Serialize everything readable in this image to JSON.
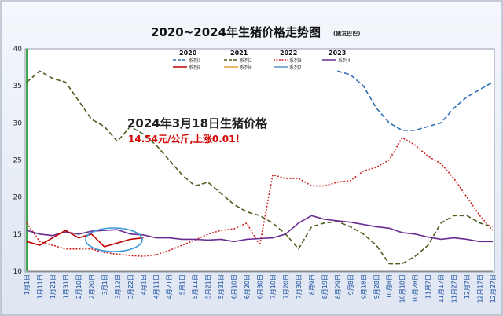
{
  "chart_data": {
    "type": "line",
    "title": "2020~2024年生猪价格走势图",
    "title_note": "(猪友巴巴)",
    "ylim": [
      10,
      40
    ],
    "yticks": [
      10,
      15,
      20,
      25,
      30,
      35,
      40
    ],
    "grid": false,
    "categories": [
      "1月1日",
      "1月11日",
      "1月21日",
      "1月31日",
      "2月10日",
      "2月20日",
      "3月1日",
      "3月12日",
      "3月22日",
      "4月1日",
      "4月11日",
      "4月21日",
      "5月1日",
      "5月11日",
      "5月21日",
      "5月31日",
      "6月10日",
      "6月20日",
      "6月30日",
      "7月10日",
      "7月20日",
      "7月30日",
      "8月9日",
      "8月19日",
      "8月29日",
      "9月8日",
      "9月18日",
      "9月28日",
      "10月8日",
      "10月18日",
      "10月28日",
      "11月7日",
      "11月17日",
      "11月27日",
      "12月7日",
      "12月17日",
      "12月27日"
    ],
    "legend": {
      "placement": "top",
      "year_headers": [
        "2020",
        "2021",
        "2022",
        "2023"
      ],
      "entries": [
        {
          "name": "系列1",
          "color": "#2e6fb5",
          "dash": "dash"
        },
        {
          "name": "系列2",
          "color": "#4a5e1e",
          "dash": "dash"
        },
        {
          "name": "系列3",
          "color": "#cc1f1f",
          "dash": "dot"
        },
        {
          "name": "系列4",
          "color": "#6a2c91",
          "dash": "solid"
        },
        {
          "name": "系列5",
          "color": "#c00000",
          "dash": "solid"
        },
        {
          "name": "系列6",
          "color": "#e8a33d",
          "dash": "solid"
        },
        {
          "name": "系列7",
          "color": "#5b8dc9",
          "dash": "solid"
        }
      ]
    },
    "series": [
      {
        "name": "系列1",
        "color": "#2e6fb5",
        "x": [
          24,
          25,
          26,
          27,
          28,
          29,
          30,
          31,
          32,
          33,
          34,
          35,
          36
        ],
        "values": [
          37,
          36.5,
          35,
          32,
          30,
          29,
          29,
          29.5,
          30,
          32,
          33.5,
          34.5,
          35.5
        ]
      },
      {
        "name": "系列2",
        "color": "#4a5e1e",
        "x": [
          0,
          1,
          2,
          3,
          4,
          5,
          6,
          7,
          8,
          9,
          10,
          11,
          12,
          13,
          14,
          15,
          16,
          17,
          18,
          19,
          20,
          21,
          22,
          23,
          24,
          25,
          26,
          27,
          28,
          29,
          30,
          31,
          32,
          33,
          34,
          35,
          36
        ],
        "values": [
          35.5,
          37,
          36,
          35.5,
          33,
          30.5,
          29.5,
          27.5,
          29.5,
          28.5,
          27,
          25,
          23,
          21.5,
          22,
          20.5,
          19,
          18,
          17.5,
          16.5,
          15,
          13,
          16,
          16.5,
          16.7,
          16,
          15,
          13.5,
          11,
          11,
          12,
          13.5,
          16.5,
          17.5,
          17.5,
          16.5,
          16
        ]
      },
      {
        "name": "系列3",
        "color": "#cc1f1f",
        "x": [
          0,
          1,
          2,
          3,
          4,
          5,
          6,
          7,
          8,
          9,
          10,
          11,
          12,
          13,
          14,
          15,
          16,
          17,
          18,
          19,
          20,
          21,
          22,
          23,
          24,
          25,
          26,
          27,
          28,
          29,
          30,
          31,
          32,
          33,
          34,
          35,
          36
        ],
        "values": [
          16.5,
          14,
          13.5,
          13,
          13,
          13,
          12.5,
          12.3,
          12.1,
          12,
          12.2,
          12.8,
          13.5,
          14.2,
          15,
          15.5,
          15.7,
          16.5,
          13.5,
          23,
          22.5,
          22.5,
          21.5,
          21.5,
          22,
          22.2,
          23.5,
          24,
          25,
          28,
          27,
          25.5,
          24.5,
          22.5,
          20,
          17.5,
          15.5
        ]
      },
      {
        "name": "系列4",
        "color": "#6a2c91",
        "x": [
          0,
          1,
          2,
          3,
          4,
          5,
          6,
          7,
          8,
          9,
          10,
          11,
          12,
          13,
          14,
          15,
          16,
          17,
          18,
          19,
          20,
          21,
          22,
          23,
          24,
          25,
          26,
          27,
          28,
          29,
          30,
          31,
          32,
          33,
          34,
          35,
          36
        ],
        "values": [
          15.5,
          15,
          14.8,
          15.3,
          15,
          15.4,
          15.5,
          15.6,
          15,
          14.9,
          14.5,
          14.5,
          14.3,
          14.3,
          14.2,
          14.3,
          14,
          14.3,
          14.4,
          14.5,
          15,
          16.5,
          17.5,
          17,
          16.8,
          16.6,
          16.3,
          16,
          15.8,
          15.2,
          15,
          14.6,
          14.3,
          14.5,
          14.3,
          14,
          14
        ]
      },
      {
        "name": "系列5",
        "color": "#c00000",
        "x": [
          0,
          1,
          2,
          3,
          4,
          5,
          6,
          7,
          8,
          9
        ],
        "values": [
          14,
          13.5,
          14.5,
          15.5,
          14.5,
          15,
          13.3,
          13.8,
          14.3,
          14.5
        ]
      }
    ],
    "annotations": {
      "headline": "2024年3月18日生猪价格",
      "detail": "14.54元/公斤,上涨0.01！"
    }
  }
}
